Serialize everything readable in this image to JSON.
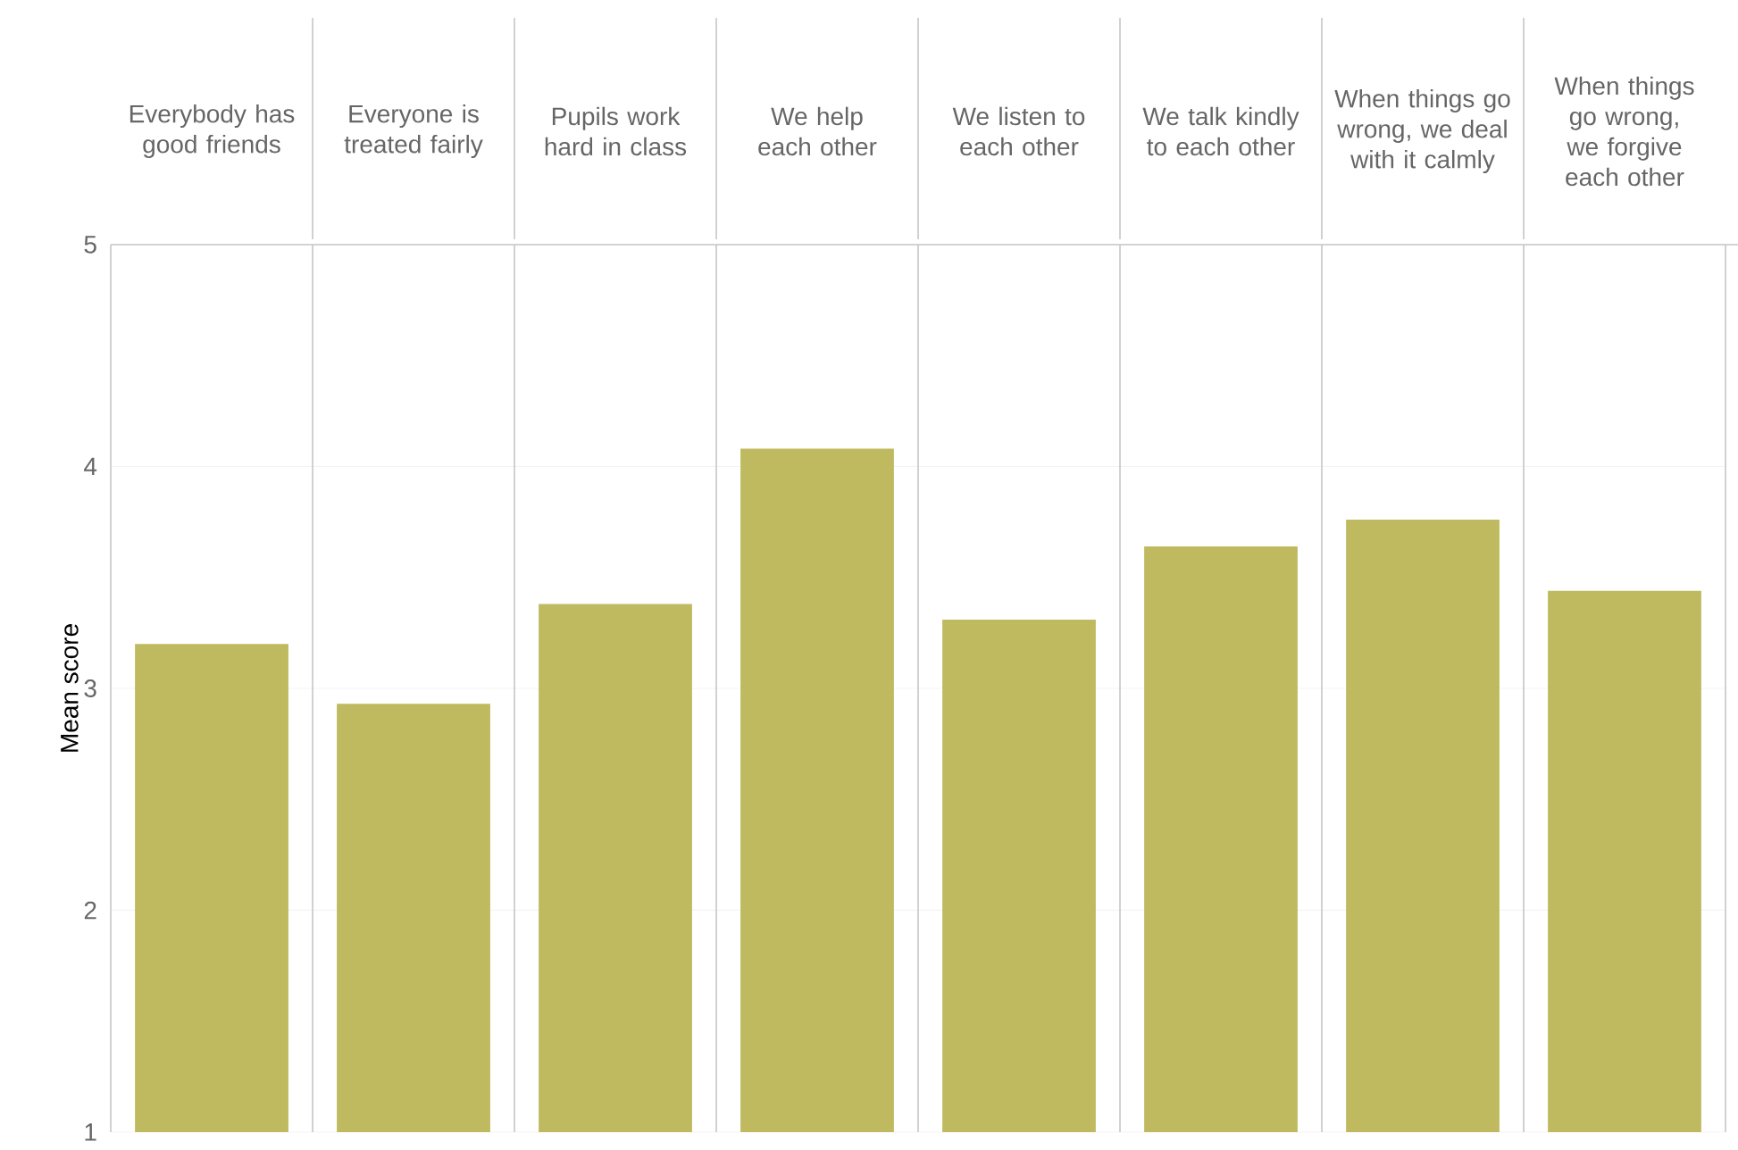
{
  "chart_data": {
    "type": "bar",
    "ylabel": "Mean score",
    "categories": [
      "Everybody has good friends",
      "Everyone is treated fairly",
      "Pupils work hard in class",
      "We help each other",
      "We listen to each other",
      "We talk kindly to each other",
      "When things go wrong, we deal with it calmly",
      "When things go wrong, we forgive each other"
    ],
    "values": [
      3.2,
      2.93,
      3.38,
      4.08,
      3.31,
      3.64,
      3.76,
      3.44
    ],
    "color": "#bfba5f",
    "ylim": [
      1,
      5
    ],
    "yticks": [
      1,
      2,
      3,
      4,
      5
    ],
    "grid": "y"
  }
}
